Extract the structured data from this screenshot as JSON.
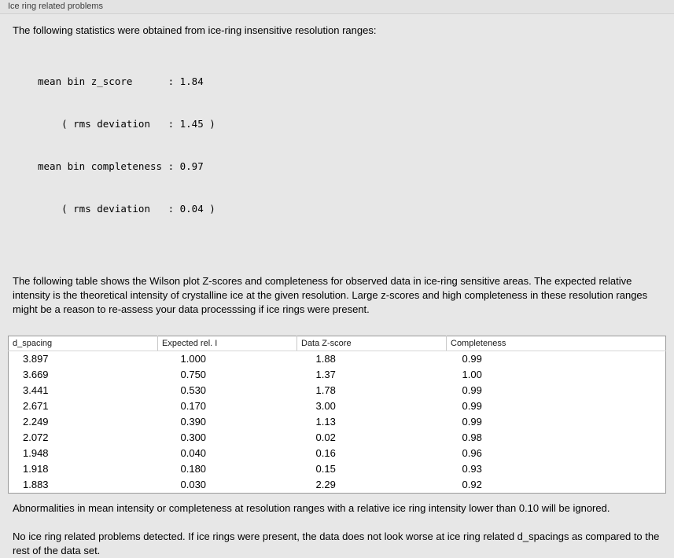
{
  "panel": {
    "title": "Ice ring related problems"
  },
  "intro": "The following statistics were obtained from ice-ring insensitive resolution ranges:",
  "stats": {
    "lines": {
      "0": "mean bin z_score      : 1.84",
      "1": "    ( rms deviation   : 1.45 )",
      "2": "mean bin completeness : 0.97",
      "3": "    ( rms deviation   : 0.04 )"
    }
  },
  "description": "The following table shows the Wilson plot Z-scores and completeness for observed data in ice-ring sensitive areas. The expected relative intensity is the theoretical intensity of crystalline ice at the given resolution. Large z-scores and high completeness in these resolution ranges might be a reason to re-assess your data processsing if ice rings were present.",
  "table": {
    "headers": [
      "d_spacing",
      "Expected rel. I",
      "Data Z-score",
      "Completeness"
    ],
    "rows": [
      [
        "3.897",
        "1.000",
        "1.88",
        "0.99"
      ],
      [
        "3.669",
        "0.750",
        "1.37",
        "1.00"
      ],
      [
        "3.441",
        "0.530",
        "1.78",
        "0.99"
      ],
      [
        "2.671",
        "0.170",
        "3.00",
        "0.99"
      ],
      [
        "2.249",
        "0.390",
        "1.13",
        "0.99"
      ],
      [
        "2.072",
        "0.300",
        "0.02",
        "0.98"
      ],
      [
        "1.948",
        "0.040",
        "0.16",
        "0.96"
      ],
      [
        "1.918",
        "0.180",
        "0.15",
        "0.93"
      ],
      [
        "1.883",
        "0.030",
        "2.29",
        "0.92"
      ]
    ]
  },
  "note": "Abnormalities in mean intensity or completeness at resolution ranges with a relative ice ring intensity lower than 0.10 will be ignored.",
  "conclusion": "No ice ring related problems detected. If ice rings were present, the data does not look worse at ice ring related d_spacings as compared to the rest of the data set."
}
